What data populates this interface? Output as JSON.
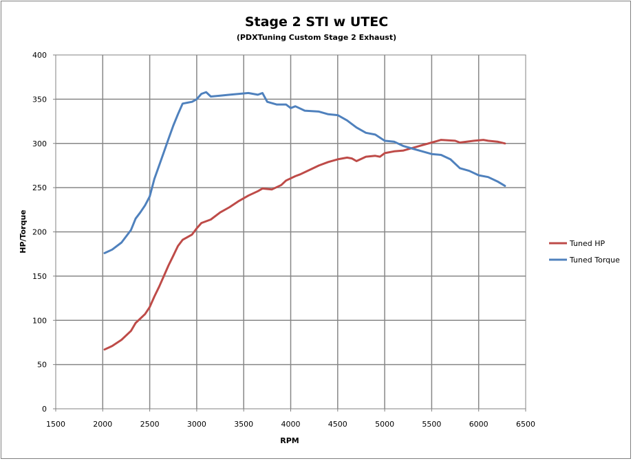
{
  "chart_data": {
    "type": "line",
    "title": "Stage 2 STI w UTEC",
    "subtitle": "(PDXTuning Custom Stage 2 Exhaust)",
    "xlabel": "RPM",
    "ylabel": "HP/Torque",
    "xlim": [
      1500,
      6500
    ],
    "ylim": [
      0,
      400
    ],
    "x_ticks": [
      1500,
      2000,
      2500,
      3000,
      3500,
      4000,
      4500,
      5000,
      5500,
      6000,
      6500
    ],
    "y_ticks": [
      0,
      50,
      100,
      150,
      200,
      250,
      300,
      350,
      400
    ],
    "grid": true,
    "legend_position": "right",
    "series": [
      {
        "name": "Tuned HP",
        "color": "#be4b48",
        "points": [
          [
            2020,
            67
          ],
          [
            2100,
            71
          ],
          [
            2200,
            78
          ],
          [
            2300,
            88
          ],
          [
            2350,
            97
          ],
          [
            2450,
            107
          ],
          [
            2500,
            115
          ],
          [
            2550,
            127
          ],
          [
            2600,
            138
          ],
          [
            2650,
            150
          ],
          [
            2700,
            162
          ],
          [
            2750,
            173
          ],
          [
            2800,
            184
          ],
          [
            2850,
            191
          ],
          [
            2950,
            197
          ],
          [
            3000,
            204
          ],
          [
            3050,
            210
          ],
          [
            3150,
            214
          ],
          [
            3250,
            222
          ],
          [
            3350,
            228
          ],
          [
            3450,
            235
          ],
          [
            3550,
            241
          ],
          [
            3650,
            246
          ],
          [
            3700,
            249
          ],
          [
            3800,
            248
          ],
          [
            3900,
            253
          ],
          [
            3950,
            258
          ],
          [
            4050,
            263
          ],
          [
            4100,
            265
          ],
          [
            4200,
            270
          ],
          [
            4300,
            275
          ],
          [
            4400,
            279
          ],
          [
            4500,
            282
          ],
          [
            4600,
            284
          ],
          [
            4650,
            283
          ],
          [
            4700,
            280
          ],
          [
            4800,
            285
          ],
          [
            4900,
            286
          ],
          [
            4950,
            285
          ],
          [
            5000,
            289
          ],
          [
            5100,
            291
          ],
          [
            5200,
            292
          ],
          [
            5300,
            295
          ],
          [
            5400,
            298
          ],
          [
            5500,
            301
          ],
          [
            5600,
            304
          ],
          [
            5750,
            303
          ],
          [
            5800,
            301
          ],
          [
            5950,
            303
          ],
          [
            6050,
            304
          ],
          [
            6100,
            303
          ],
          [
            6200,
            302
          ],
          [
            6280,
            300
          ]
        ]
      },
      {
        "name": "Tuned Torque",
        "color": "#4f81bd",
        "points": [
          [
            2020,
            176
          ],
          [
            2100,
            180
          ],
          [
            2200,
            188
          ],
          [
            2300,
            202
          ],
          [
            2350,
            215
          ],
          [
            2400,
            222
          ],
          [
            2450,
            230
          ],
          [
            2500,
            240
          ],
          [
            2550,
            260
          ],
          [
            2600,
            275
          ],
          [
            2650,
            290
          ],
          [
            2700,
            305
          ],
          [
            2750,
            320
          ],
          [
            2800,
            333
          ],
          [
            2850,
            345
          ],
          [
            2900,
            346
          ],
          [
            2950,
            347
          ],
          [
            3000,
            350
          ],
          [
            3050,
            356
          ],
          [
            3100,
            358
          ],
          [
            3150,
            353
          ],
          [
            3250,
            354
          ],
          [
            3350,
            355
          ],
          [
            3450,
            356
          ],
          [
            3550,
            357
          ],
          [
            3650,
            355
          ],
          [
            3700,
            357
          ],
          [
            3750,
            347
          ],
          [
            3850,
            344
          ],
          [
            3950,
            344
          ],
          [
            4000,
            340
          ],
          [
            4050,
            342
          ],
          [
            4150,
            337
          ],
          [
            4300,
            336
          ],
          [
            4400,
            333
          ],
          [
            4500,
            332
          ],
          [
            4600,
            326
          ],
          [
            4700,
            318
          ],
          [
            4800,
            312
          ],
          [
            4900,
            310
          ],
          [
            5000,
            303
          ],
          [
            5100,
            302
          ],
          [
            5200,
            297
          ],
          [
            5300,
            294
          ],
          [
            5400,
            291
          ],
          [
            5500,
            288
          ],
          [
            5600,
            287
          ],
          [
            5700,
            282
          ],
          [
            5800,
            272
          ],
          [
            5900,
            269
          ],
          [
            6000,
            264
          ],
          [
            6100,
            262
          ],
          [
            6200,
            257
          ],
          [
            6280,
            252
          ]
        ]
      }
    ]
  }
}
